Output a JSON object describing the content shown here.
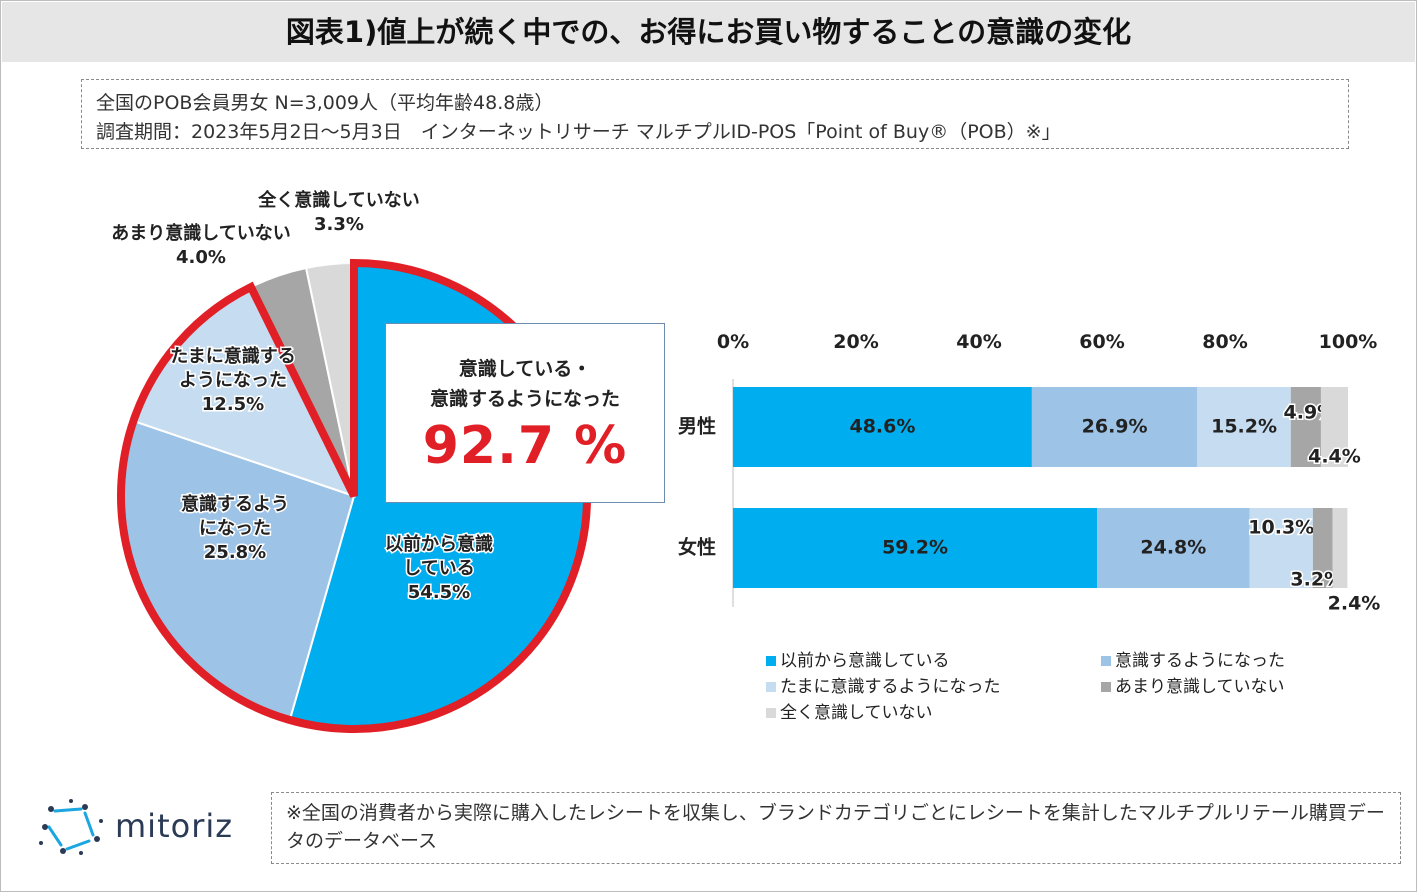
{
  "header": {
    "title": "図表1)値上が続く中での、お得にお買い物することの意識の変化"
  },
  "info": {
    "line1": "全国のPOB会員男女 N=3,009人（平均年齢48.8歳）",
    "line2": "調査期間：2023年5月2日～5月3日　インターネットリサーチ マルチプルID-POS「Point of Buy®（POB）※」"
  },
  "callout": {
    "label1": "意識している・",
    "label2": "意識するようになった",
    "value": "92.7 %"
  },
  "colors": {
    "c1": "#00aeef",
    "c2": "#9dc3e6",
    "c3": "#c6dcf0",
    "c4": "#a6a6a6",
    "c5": "#d9d9d9",
    "highlight": "#e11f26"
  },
  "chart_data": [
    {
      "type": "pie",
      "title": "",
      "slices": [
        {
          "label": "以前から意識している",
          "label_lines": [
            "以前から意識",
            "している"
          ],
          "value": 54.5,
          "value_text": "54.5%"
        },
        {
          "label": "意識するようになった",
          "label_lines": [
            "意識するよう",
            "になった"
          ],
          "value": 25.8,
          "value_text": "25.8%"
        },
        {
          "label": "たまに意識するようになった",
          "label_lines": [
            "たまに意識する",
            "ようになった"
          ],
          "value": 12.5,
          "value_text": "12.5%"
        },
        {
          "label": "あまり意識していない",
          "label_lines": [
            "あまり意識していない"
          ],
          "value": 4.0,
          "value_text": "4.0%"
        },
        {
          "label": "全く意識していない",
          "label_lines": [
            "全く意識していない"
          ],
          "value": 3.3,
          "value_text": "3.3%"
        }
      ],
      "highlight_total": 92.7
    },
    {
      "type": "bar",
      "orientation": "horizontal",
      "stacked": true,
      "categories": [
        "男性",
        "女性"
      ],
      "xlim": [
        0,
        100
      ],
      "xticks": [
        "0%",
        "20%",
        "40%",
        "60%",
        "80%",
        "100%"
      ],
      "series": [
        {
          "name": "以前から意識している",
          "values": [
            48.6,
            59.2
          ],
          "labels": [
            "48.6%",
            "59.2%"
          ]
        },
        {
          "name": "意識するようになった",
          "values": [
            26.9,
            24.8
          ],
          "labels": [
            "26.9%",
            "24.8%"
          ]
        },
        {
          "name": "たまに意識するようになった",
          "values": [
            15.2,
            10.3
          ],
          "labels": [
            "15.2%",
            "10.3%"
          ]
        },
        {
          "name": "あまり意識していない",
          "values": [
            4.9,
            3.2
          ],
          "labels": [
            "4.9%",
            "3.2%"
          ]
        },
        {
          "name": "全く意識していない",
          "values": [
            4.4,
            2.4
          ],
          "labels": [
            "4.4%",
            "2.4%"
          ]
        }
      ],
      "legend": [
        "以前から意識している",
        "意識するようになった",
        "たまに意識するようになった",
        "あまり意識していない",
        "全く意識していない"
      ]
    }
  ],
  "logo": {
    "text": "mitoriz"
  },
  "note": {
    "text": "※全国の消費者から実際に購入したレシートを収集し、ブランドカテゴリごとにレシートを集計したマルチプルリテール購買データのデータベース"
  }
}
